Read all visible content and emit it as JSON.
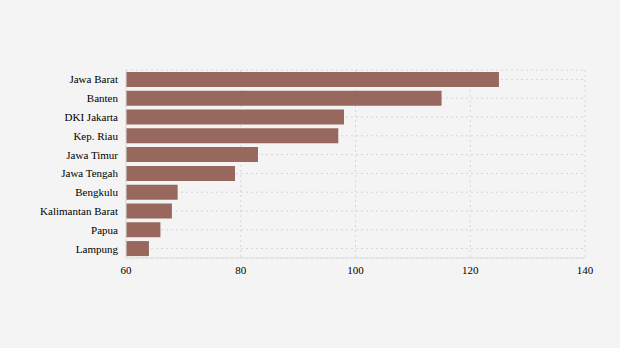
{
  "chart_data": {
    "type": "bar",
    "orientation": "horizontal",
    "categories": [
      "Jawa Barat",
      "Banten",
      "DKI Jakarta",
      "Kep. Riau",
      "Jawa Timur",
      "Jawa Tengah",
      "Bengkulu",
      "Kalimantan Barat",
      "Papua",
      "Lampung"
    ],
    "values": [
      125,
      115,
      98,
      97,
      83,
      79,
      69,
      68,
      66,
      64
    ],
    "color": "#98685e",
    "xlim": [
      60,
      140
    ],
    "xticks": [
      60,
      80,
      100,
      120,
      140
    ],
    "grid": true
  }
}
